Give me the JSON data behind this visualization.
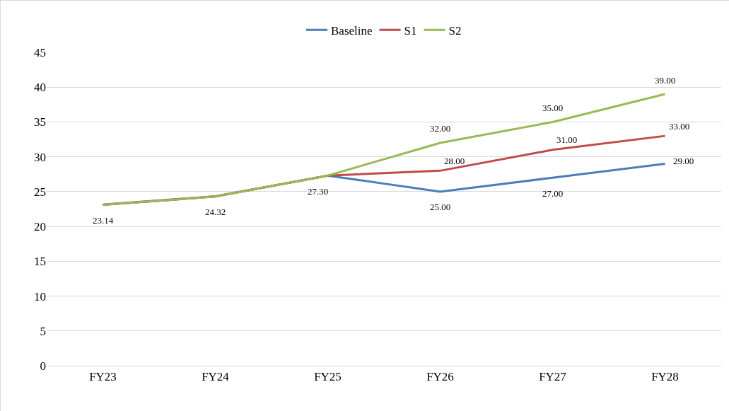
{
  "chart_data": {
    "type": "line",
    "categories": [
      "FY23",
      "FY24",
      "FY25",
      "FY26",
      "FY27",
      "FY28"
    ],
    "series": [
      {
        "name": "Baseline",
        "color": "#4a7ebb",
        "values": [
          23.14,
          24.32,
          27.3,
          25,
          27,
          29
        ],
        "value_labels": [
          "23.14",
          "24.32",
          "27.30",
          "25.00",
          "27.00",
          "29.00"
        ]
      },
      {
        "name": "S1",
        "color": "#be4b48",
        "values": [
          23.1,
          24.3,
          27.3,
          28,
          31,
          33
        ],
        "value_labels": [
          null,
          null,
          null,
          "28.00",
          "31.00",
          "33.00"
        ]
      },
      {
        "name": "S2",
        "color": "#98b954",
        "values": [
          23.1,
          24.3,
          27.3,
          32,
          35,
          39
        ],
        "value_labels": [
          null,
          null,
          null,
          "32.00",
          "35.00",
          "39.00"
        ]
      }
    ],
    "ylim": [
      0,
      45
    ],
    "yticks": [
      0,
      5,
      10,
      15,
      20,
      25,
      30,
      35,
      40,
      45
    ],
    "grid": "y",
    "legend": "top",
    "marker": "none",
    "line_style": "solid"
  }
}
